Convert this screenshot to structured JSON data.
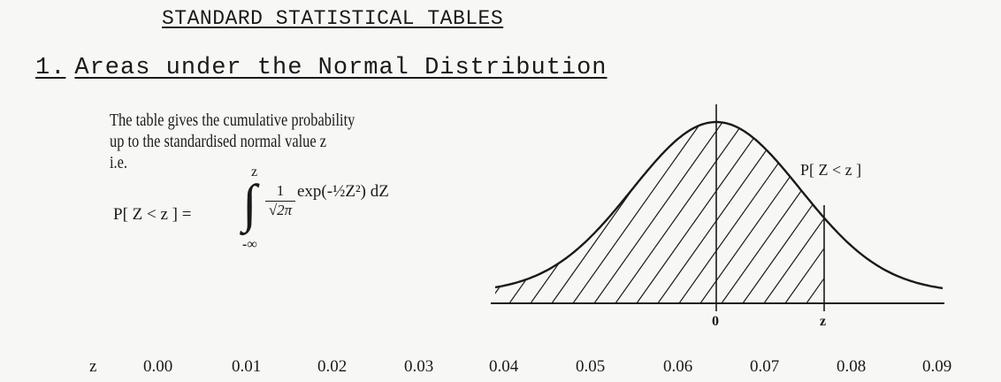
{
  "document": {
    "title": "STANDARD STATISTICAL TABLES",
    "section": {
      "number": "1.",
      "title": "Areas under the Normal Distribution"
    },
    "description_lines": [
      "The table gives the cumulative probability",
      "up to the standardised normal value z",
      "i.e."
    ],
    "formula": {
      "lhs": "P[ Z < z ] =",
      "upper_limit": "z",
      "lower_limit": "-∞",
      "fraction_numerator": "1",
      "fraction_denominator": "√2π",
      "integrand": "exp(-½Z²) dZ"
    }
  },
  "figure": {
    "curve_label": "P[ Z < z ]",
    "axis_labels": [
      "0",
      "z"
    ]
  },
  "table": {
    "column_headers": [
      "z",
      "0.00",
      "0.01",
      "0.02",
      "0.03",
      "0.04",
      "0.05",
      "0.06",
      "0.07",
      "0.08",
      "0.09"
    ]
  }
}
